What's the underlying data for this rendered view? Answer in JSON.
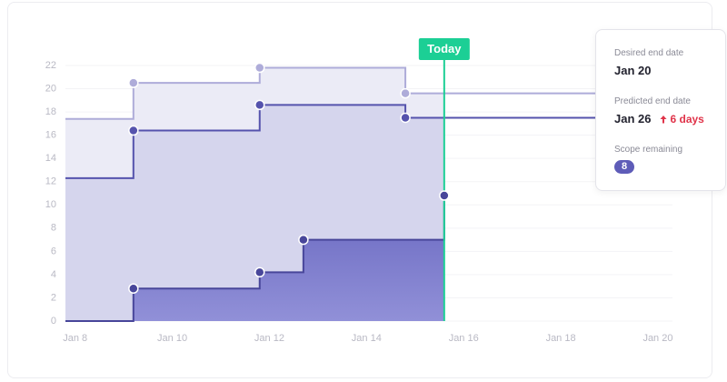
{
  "chart_data": {
    "type": "step-area",
    "xlim": [
      7.8,
      20.3
    ],
    "ylim": [
      0,
      22
    ],
    "xticks": [
      {
        "value": 8,
        "label": "Jan 8"
      },
      {
        "value": 10,
        "label": "Jan 10"
      },
      {
        "value": 12,
        "label": "Jan 12"
      },
      {
        "value": 14,
        "label": "Jan 14"
      },
      {
        "value": 16,
        "label": "Jan 16"
      },
      {
        "value": 18,
        "label": "Jan 18"
      },
      {
        "value": 20,
        "label": "Jan 20"
      }
    ],
    "yticks": [
      0,
      2,
      4,
      6,
      8,
      10,
      12,
      14,
      16,
      18,
      20,
      22
    ],
    "grid": true,
    "today": {
      "value": 15.6,
      "label": "Today",
      "color": "#1ccf95"
    },
    "series": [
      {
        "color": "#aeacd9",
        "fill": "#ebebf6",
        "x": [
          7.8,
          9.2,
          11.8,
          14.8,
          20.3
        ],
        "values": [
          17.4,
          20.5,
          21.8,
          19.6,
          19.6
        ]
      },
      {
        "color": "#5553ad",
        "fill": "#d1d1eb",
        "x": [
          7.8,
          9.2,
          11.8,
          14.8,
          20.3
        ],
        "values": [
          12.3,
          16.4,
          18.6,
          17.5,
          17.5
        ]
      },
      {
        "color": "#48469a",
        "fill": "#7271c8",
        "x": [
          7.8,
          9.2,
          11.8,
          12.7,
          15.6
        ],
        "values": [
          0,
          2.8,
          4.2,
          7.0,
          10.8
        ]
      }
    ]
  },
  "card": {
    "desired_label": "Desired end date",
    "desired_value": "Jan 20",
    "predicted_label": "Predicted end date",
    "predicted_value": "Jan 26",
    "delta": "6 days",
    "scope_label": "Scope remaining",
    "scope_value": 8
  }
}
